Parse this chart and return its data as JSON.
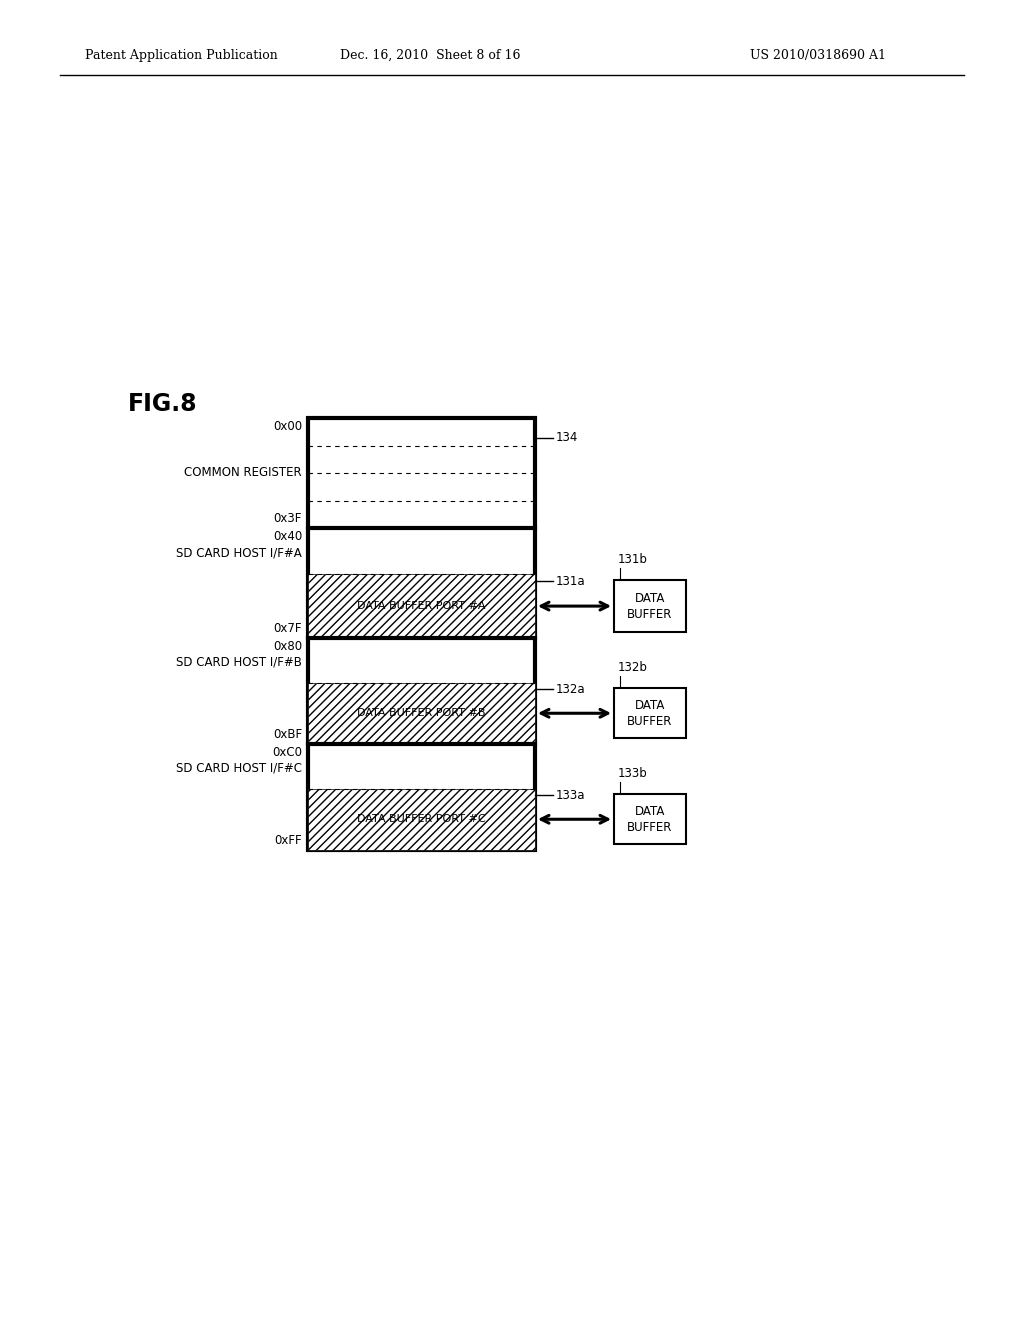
{
  "fig_label": "FIG.8",
  "header_left": "Patent Application Publication",
  "header_center": "Dec. 16, 2010  Sheet 8 of 16",
  "header_right": "US 2010/0318690 A1",
  "bg_color": "#ffffff",
  "sections": [
    {
      "label_addr_top": "0x40",
      "label_name": "SD CARD HOST I/F#A",
      "label_addr_bot": "0x7F",
      "buffer_port_label": "DATA BUFFER PORT #A",
      "ref_a": "131a",
      "ref_b": "131b",
      "buffer_label": "DATA\nBUFFER"
    },
    {
      "label_addr_top": "0x80",
      "label_name": "SD CARD HOST I/F#B",
      "label_addr_bot": "0xBF",
      "buffer_port_label": "DATA BUFFER PORT #B",
      "ref_a": "132a",
      "ref_b": "132b",
      "buffer_label": "DATA\nBUFFER"
    },
    {
      "label_addr_top": "0xC0",
      "label_name": "SD CARD HOST I/F#C",
      "label_addr_bot": "0xFF",
      "buffer_port_label": "DATA BUFFER PORT #C",
      "ref_a": "133a",
      "ref_b": "133b",
      "buffer_label": "DATA\nBUFFER"
    }
  ]
}
